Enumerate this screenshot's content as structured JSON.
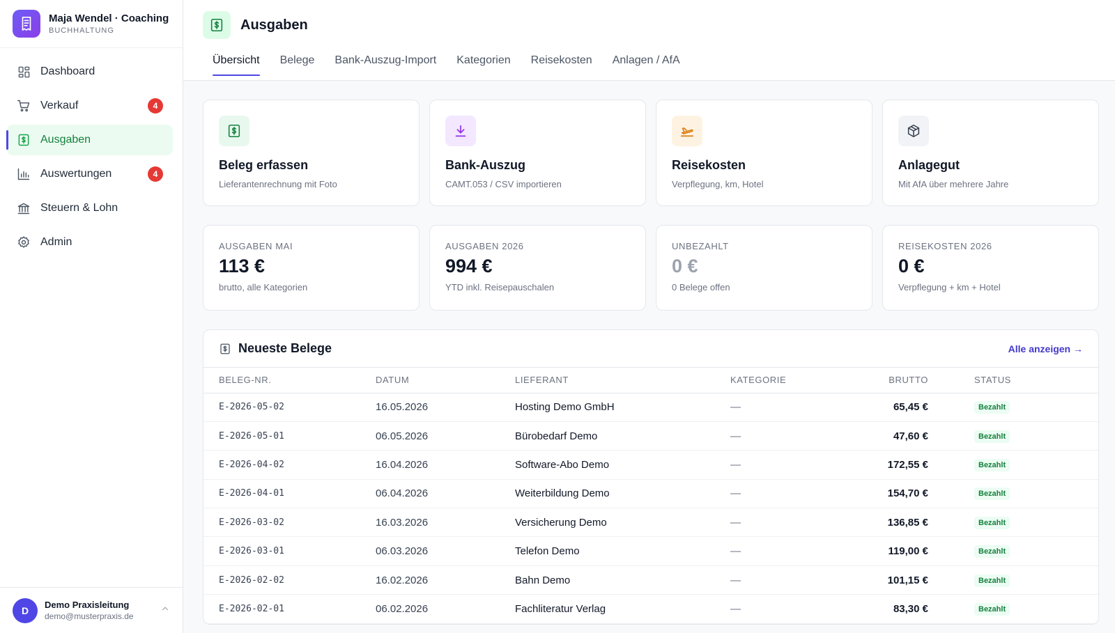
{
  "brand": {
    "name": "Maja Wendel · Coaching",
    "subtitle": "BUCHHALTUNG"
  },
  "sidebar": {
    "items": [
      {
        "label": "Dashboard",
        "icon": "dashboard-icon",
        "badge": ""
      },
      {
        "label": "Verkauf",
        "icon": "cart-icon",
        "badge": "4"
      },
      {
        "label": "Ausgaben",
        "icon": "receipt-icon",
        "badge": "",
        "active": true
      },
      {
        "label": "Auswertungen",
        "icon": "bar-chart-icon",
        "badge": "4"
      },
      {
        "label": "Steuern & Lohn",
        "icon": "bank-icon",
        "badge": ""
      },
      {
        "label": "Admin",
        "icon": "gear-icon",
        "badge": ""
      }
    ]
  },
  "user": {
    "initial": "D",
    "name": "Demo Praxisleitung",
    "email": "demo@musterpraxis.de"
  },
  "header": {
    "title": "Ausgaben",
    "tabs": [
      "Übersicht",
      "Belege",
      "Bank-Auszug-Import",
      "Kategorien",
      "Reisekosten",
      "Anlagen / AfA"
    ]
  },
  "actions": [
    {
      "title": "Beleg erfassen",
      "subtitle": "Lieferantenrechnung mit Foto",
      "icon": "receipt-icon",
      "color": "#15803d",
      "bg": "#e8f8ee"
    },
    {
      "title": "Bank-Auszug",
      "subtitle": "CAMT.053 / CSV importieren",
      "icon": "download-icon",
      "color": "#9333ea",
      "bg": "#f3e8ff"
    },
    {
      "title": "Reisekosten",
      "subtitle": "Verpflegung, km, Hotel",
      "icon": "plane-icon",
      "color": "#d97706",
      "bg": "#fef3e2"
    },
    {
      "title": "Anlagegut",
      "subtitle": "Mit AfA über mehrere Jahre",
      "icon": "box-icon",
      "color": "#374151",
      "bg": "#f1f3f6"
    }
  ],
  "stats": [
    {
      "label": "AUSGABEN MAI",
      "value": "113 €",
      "sub": "brutto, alle Kategorien",
      "muted": false
    },
    {
      "label": "AUSGABEN 2026",
      "value": "994 €",
      "sub": "YTD inkl. Reisepauschalen",
      "muted": false
    },
    {
      "label": "UNBEZAHLT",
      "value": "0 €",
      "sub": "0 Belege offen",
      "muted": true
    },
    {
      "label": "REISEKOSTEN 2026",
      "value": "0 €",
      "sub": "Verpflegung + km + Hotel",
      "muted": false
    }
  ],
  "receipts": {
    "title": "Neueste Belege",
    "link": "Alle anzeigen →",
    "columns": [
      "BELEG-NR.",
      "DATUM",
      "LIEFERANT",
      "KATEGORIE",
      "BRUTTO",
      "STATUS"
    ],
    "rows": [
      {
        "nr": "E-2026-05-02",
        "date": "16.05.2026",
        "supplier": "Hosting Demo GmbH",
        "category": "—",
        "amount": "65,45 €",
        "status": "Bezahlt"
      },
      {
        "nr": "E-2026-05-01",
        "date": "06.05.2026",
        "supplier": "Bürobedarf Demo",
        "category": "—",
        "amount": "47,60 €",
        "status": "Bezahlt"
      },
      {
        "nr": "E-2026-04-02",
        "date": "16.04.2026",
        "supplier": "Software-Abo Demo",
        "category": "—",
        "amount": "172,55 €",
        "status": "Bezahlt"
      },
      {
        "nr": "E-2026-04-01",
        "date": "06.04.2026",
        "supplier": "Weiterbildung Demo",
        "category": "—",
        "amount": "154,70 €",
        "status": "Bezahlt"
      },
      {
        "nr": "E-2026-03-02",
        "date": "16.03.2026",
        "supplier": "Versicherung Demo",
        "category": "—",
        "amount": "136,85 €",
        "status": "Bezahlt"
      },
      {
        "nr": "E-2026-03-01",
        "date": "06.03.2026",
        "supplier": "Telefon Demo",
        "category": "—",
        "amount": "119,00 €",
        "status": "Bezahlt"
      },
      {
        "nr": "E-2026-02-02",
        "date": "16.02.2026",
        "supplier": "Bahn Demo",
        "category": "—",
        "amount": "101,15 €",
        "status": "Bezahlt"
      },
      {
        "nr": "E-2026-02-01",
        "date": "06.02.2026",
        "supplier": "Fachliteratur Verlag",
        "category": "—",
        "amount": "83,30 €",
        "status": "Bezahlt"
      }
    ]
  }
}
